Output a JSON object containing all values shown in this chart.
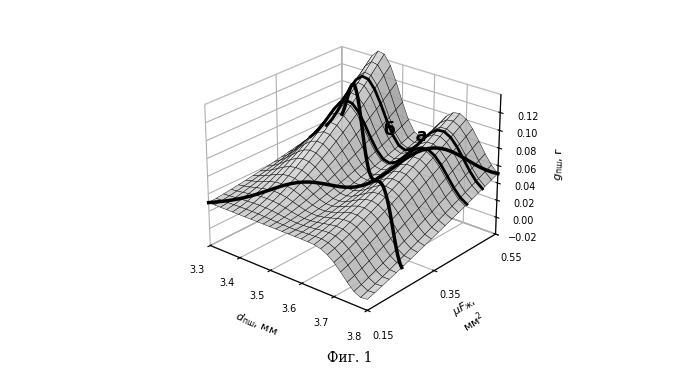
{
  "title": "Фиг. 1",
  "x_ticks": [
    3.3,
    3.4,
    3.5,
    3.6,
    3.7,
    3.8
  ],
  "y_ticks": [
    0.15,
    0.35,
    0.55
  ],
  "z_ticks": [
    -0.02,
    0.0,
    0.02,
    0.04,
    0.06,
    0.08,
    0.1,
    0.12
  ],
  "nx": 26,
  "ny": 20,
  "label_a": "a",
  "label_b": "б",
  "background_color": "#ffffff",
  "elev": 25,
  "azim": -50
}
